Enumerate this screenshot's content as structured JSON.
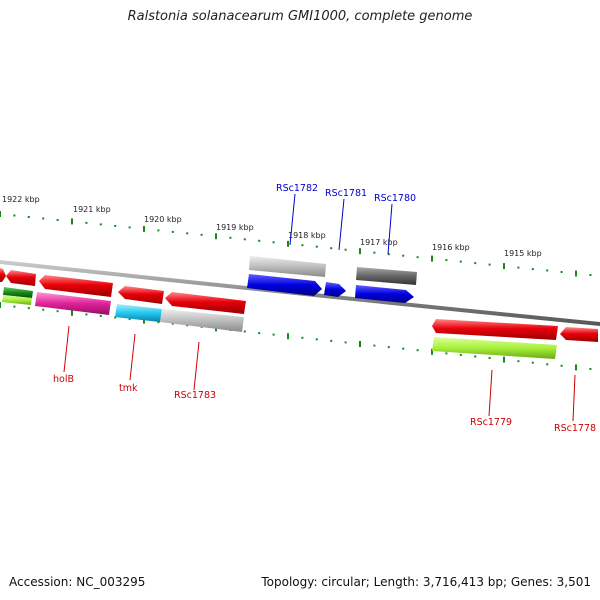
{
  "title": "Ralstonia solanacearum GMI1000, complete genome",
  "footer": {
    "accession": "Accession: NC_003295",
    "summary": "Topology: circular; Length: 3,716,413 bp; Genes: 3,501"
  },
  "kbp_labels": [
    "1922 kbp",
    "1921 kbp",
    "1920 kbp",
    "1919 kbp",
    "1918 kbp",
    "1917 kbp",
    "1916 kbp",
    "1915 kbp"
  ],
  "gene_labels": {
    "rsc1782": "RSc1782",
    "rsc1781": "RSc1781",
    "rsc1780": "RSc1780",
    "holb": "holB",
    "tmk": "tmk",
    "rsc1783": "RSc1783",
    "rsc1779": "RSc1779",
    "rsc1778": "RSc1778"
  },
  "colors": {
    "red": "#e8000b",
    "blue": "#0000e0",
    "magenta": "#e0229a",
    "cyan": "#22c8ee",
    "light_gray": "#bdbdbd",
    "dark_gray": "#666666",
    "lime": "#a8f03a",
    "green": "#1a8a1a",
    "tick_green": "#158a15",
    "label_red": "#cc0000",
    "label_blue": "#0000cc",
    "backbone": "#888888"
  }
}
